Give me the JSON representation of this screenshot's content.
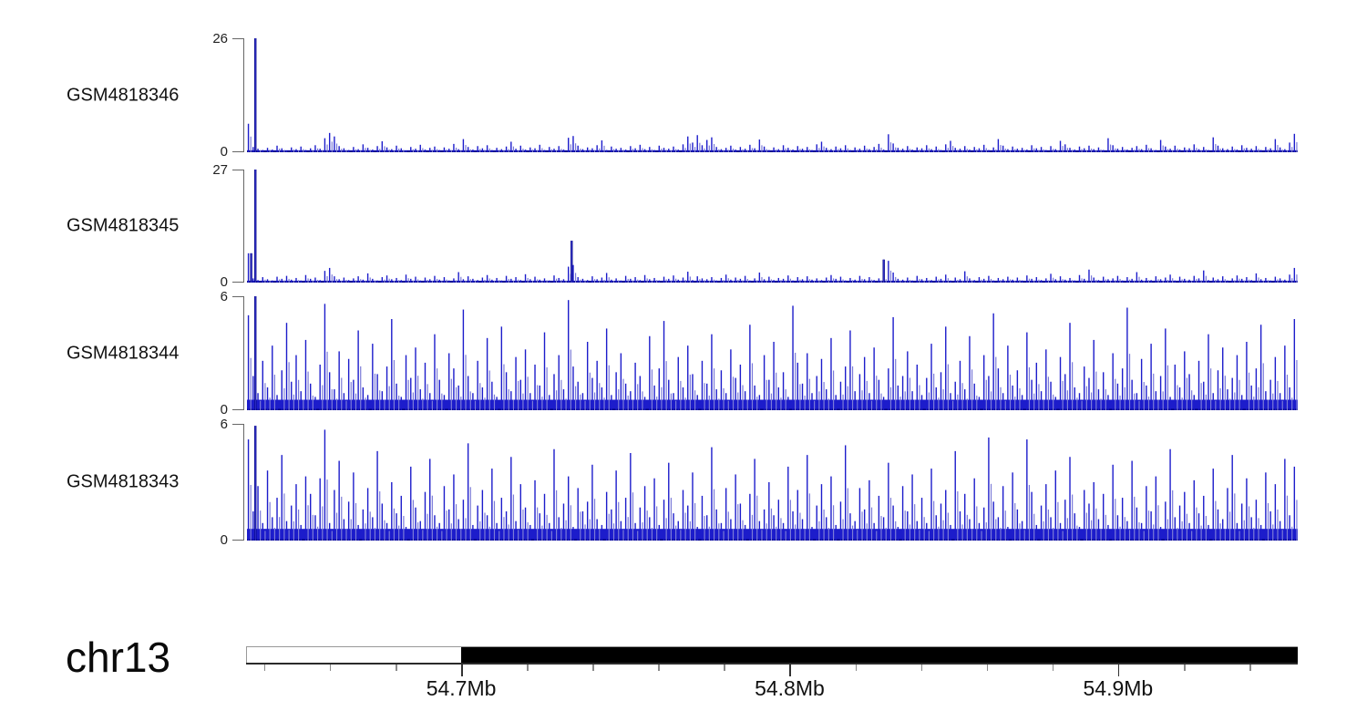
{
  "colors": {
    "signal_main": "#1c1ccb",
    "signal_light": "#7b7bd8",
    "signal_dark": "#000080",
    "spike_core": "#3b3bd6",
    "axis_bracket": "#666666",
    "ruler_line": "#2b2b2b",
    "minor_tick": "#8a8a8a",
    "major_tick": "#333333",
    "ideogram_outline": "#999999",
    "ideogram_filled": "#000000",
    "ideogram_empty": "#ffffff",
    "text": "#111111"
  },
  "chart_data": {
    "type": "area",
    "subtype": "genome-coverage-tracks",
    "chromosome": "chr13",
    "x_unit": "Mb",
    "x_range_mb": [
      54.6345,
      54.9547
    ],
    "grid": false,
    "legend": "none",
    "tracks": [
      {
        "label": "GSM4818346",
        "ymin": 0,
        "ymax": 26,
        "base": 0.45,
        "spikes": [
          {
            "pos": 0.008,
            "value": 26
          }
        ],
        "values": [
          6.5,
          1.2,
          0.8,
          0.5,
          1.0,
          0.6,
          1.5,
          0.9,
          0.4,
          1.1,
          0.7,
          1.3,
          0.5,
          0.9,
          1.6,
          0.8,
          3.2,
          4.4,
          3.6,
          1.4,
          0.9,
          0.5,
          1.2,
          0.7,
          1.8,
          1.0,
          0.6,
          1.4,
          2.5,
          1.1,
          0.7,
          1.5,
          0.9,
          0.4,
          1.2,
          0.8,
          1.7,
          0.6,
          1.0,
          1.3,
          0.5,
          1.1,
          0.8,
          1.9,
          0.7,
          3.0,
          1.2,
          0.6,
          1.4,
          0.9,
          1.6,
          0.5,
          1.0,
          0.7,
          1.3,
          2.4,
          0.8,
          1.5,
          0.6,
          1.1,
          0.9,
          1.7,
          0.5,
          1.2,
          0.8,
          1.4,
          0.6,
          3.3,
          3.7,
          1.5,
          0.7,
          1.1,
          0.9,
          1.6,
          2.7,
          0.5,
          1.3,
          0.8,
          1.0,
          0.6,
          1.4,
          0.9,
          1.7,
          0.7,
          1.2,
          0.5,
          1.5,
          1.0,
          0.8,
          1.3,
          0.6,
          1.8,
          3.6,
          2.2,
          3.9,
          1.6,
          2.8,
          3.4,
          1.2,
          0.7,
          1.0,
          1.5,
          0.6,
          1.2,
          0.8,
          1.7,
          0.9,
          2.9,
          1.3,
          0.5,
          1.1,
          0.7,
          1.6,
          1.0,
          0.6,
          1.4,
          0.8,
          1.2,
          0.5,
          1.8,
          2.4,
          1.0,
          0.7,
          1.3,
          0.9,
          1.6,
          0.5,
          1.1,
          0.8,
          1.5,
          0.7,
          1.2,
          1.9,
          0.6,
          4.1,
          2.0,
          1.0,
          0.8,
          1.4,
          0.6,
          1.1,
          0.9,
          1.6,
          0.7,
          1.3,
          0.5,
          1.8,
          2.6,
          1.0,
          0.8,
          1.4,
          0.6,
          1.2,
          0.9,
          1.7,
          0.5,
          1.1,
          3.0,
          1.5,
          0.7,
          1.3,
          0.8,
          1.0,
          0.6,
          1.6,
          0.9,
          1.2,
          0.5,
          1.4,
          0.7,
          2.6,
          1.8,
          1.0,
          0.6,
          1.3,
          0.9,
          1.5,
          0.7,
          1.1,
          0.5,
          3.2,
          1.6,
          0.8,
          1.2,
          0.6,
          1.0,
          1.4,
          0.7,
          1.7,
          0.9,
          0.5,
          2.8,
          1.3,
          0.8,
          1.5,
          0.6,
          1.1,
          0.9,
          1.8,
          0.7,
          1.2,
          0.5,
          3.4,
          1.5,
          0.9,
          0.7,
          1.3,
          0.6,
          1.6,
          1.0,
          0.8,
          1.4,
          0.5,
          1.2,
          0.9,
          3.0,
          1.1,
          0.7,
          2.2,
          4.2
        ]
      },
      {
        "label": "GSM4818345",
        "ymin": 0,
        "ymax": 27,
        "base": 0.45,
        "spikes": [
          {
            "pos": 0.008,
            "value": 27
          },
          {
            "pos": 0.004,
            "value": 7
          },
          {
            "pos": 0.309,
            "value": 10
          },
          {
            "pos": 0.606,
            "value": 5.5
          }
        ],
        "values": [
          7.0,
          1.0,
          0.6,
          1.3,
          0.8,
          0.5,
          1.4,
          0.9,
          1.6,
          0.7,
          1.1,
          0.5,
          1.8,
          0.9,
          1.2,
          0.6,
          2.8,
          3.5,
          1.5,
          0.8,
          1.2,
          0.6,
          1.0,
          1.5,
          0.7,
          2.2,
          0.9,
          0.5,
          1.3,
          1.7,
          0.8,
          1.1,
          0.6,
          1.9,
          0.9,
          1.4,
          0.5,
          1.2,
          0.8,
          1.6,
          0.7,
          1.3,
          0.5,
          1.0,
          2.5,
          0.8,
          1.5,
          0.9,
          0.6,
          1.2,
          1.8,
          0.7,
          1.1,
          0.5,
          1.6,
          0.9,
          1.3,
          0.6,
          2.0,
          0.8,
          1.4,
          0.7,
          1.0,
          0.5,
          1.7,
          1.1,
          0.8,
          3.8,
          4.2,
          1.3,
          0.9,
          0.6,
          1.5,
          0.8,
          1.2,
          2.3,
          0.7,
          1.0,
          0.5,
          1.6,
          0.9,
          1.3,
          0.6,
          1.8,
          0.8,
          1.1,
          0.5,
          1.4,
          0.9,
          1.7,
          0.7,
          1.2,
          2.6,
          0.6,
          1.5,
          1.0,
          0.8,
          1.3,
          0.5,
          1.1,
          1.9,
          0.7,
          1.2,
          0.9,
          1.6,
          0.5,
          1.0,
          2.4,
          0.8,
          1.4,
          0.6,
          1.1,
          0.9,
          1.7,
          0.5,
          1.3,
          0.8,
          1.5,
          0.7,
          1.0,
          0.6,
          1.2,
          1.8,
          0.9,
          1.4,
          0.5,
          1.1,
          0.7,
          1.6,
          0.8,
          1.3,
          0.6,
          1.0,
          1.5,
          5.2,
          2.4,
          0.9,
          0.7,
          1.2,
          0.5,
          1.6,
          0.8,
          1.1,
          0.6,
          1.4,
          0.9,
          1.9,
          0.5,
          1.2,
          0.8,
          2.7,
          1.0,
          0.6,
          1.3,
          0.9,
          1.6,
          0.5,
          1.1,
          0.8,
          1.4,
          0.7,
          1.2,
          0.5,
          1.7,
          0.9,
          1.3,
          0.6,
          1.0,
          2.1,
          0.8,
          1.5,
          0.7,
          1.1,
          0.5,
          1.8,
          0.9,
          3.1,
          1.2,
          0.6,
          1.4,
          0.8,
          1.0,
          1.6,
          0.5,
          1.3,
          0.9,
          2.5,
          0.7,
          1.1,
          0.6,
          1.5,
          0.8,
          1.2,
          1.9,
          0.5,
          1.4,
          0.9,
          0.7,
          1.6,
          1.0,
          2.9,
          0.6,
          1.2,
          0.8,
          1.5,
          0.5,
          1.0,
          1.7,
          0.9,
          1.3,
          0.6,
          2.2,
          0.8,
          1.1,
          0.5,
          1.4,
          1.0,
          0.7,
          1.9,
          3.5
        ]
      },
      {
        "label": "GSM4818344",
        "ymin": 0,
        "ymax": 6,
        "base": 0.55,
        "spikes": [
          {
            "pos": 0.008,
            "value": 6
          }
        ],
        "values": [
          5.0,
          1.8,
          0.9,
          2.6,
          1.2,
          3.4,
          0.8,
          2.1,
          4.6,
          1.5,
          2.9,
          1.0,
          3.7,
          1.4,
          0.7,
          2.4,
          5.6,
          2.0,
          1.1,
          3.1,
          0.9,
          2.7,
          1.6,
          4.2,
          1.2,
          0.8,
          3.5,
          1.9,
          1.0,
          2.3,
          4.8,
          1.4,
          0.7,
          2.9,
          1.7,
          3.3,
          1.1,
          2.5,
          0.9,
          4.0,
          1.6,
          0.8,
          3.0,
          2.2,
          1.3,
          5.3,
          1.8,
          0.9,
          2.6,
          1.2,
          3.8,
          1.5,
          0.7,
          4.4,
          2.0,
          1.0,
          2.8,
          1.6,
          3.2,
          0.9,
          2.4,
          1.3,
          4.1,
          0.8,
          1.9,
          2.9,
          1.1,
          5.8,
          2.3,
          1.5,
          0.9,
          3.6,
          1.7,
          2.6,
          1.2,
          4.3,
          0.8,
          2.0,
          3.0,
          1.4,
          1.0,
          2.5,
          1.8,
          0.7,
          3.9,
          1.3,
          2.2,
          4.7,
          1.6,
          0.9,
          2.8,
          1.2,
          3.4,
          1.9,
          0.8,
          2.6,
          1.4,
          4.0,
          1.1,
          2.1,
          0.9,
          3.2,
          1.7,
          2.4,
          1.0,
          4.5,
          1.3,
          0.8,
          2.9,
          1.6,
          3.6,
          1.2,
          2.0,
          0.7,
          5.5,
          2.5,
          1.4,
          3.0,
          0.9,
          1.8,
          2.7,
          1.1,
          3.8,
          0.8,
          1.5,
          2.3,
          4.2,
          1.0,
          1.9,
          2.8,
          0.9,
          3.3,
          1.6,
          0.7,
          2.2,
          4.9,
          1.3,
          1.8,
          3.1,
          1.0,
          2.4,
          0.8,
          1.7,
          3.5,
          1.2,
          2.0,
          4.4,
          0.9,
          1.5,
          2.6,
          1.1,
          3.9,
          1.4,
          0.7,
          2.9,
          1.8,
          5.1,
          2.2,
          0.9,
          3.4,
          1.3,
          2.1,
          0.8,
          4.1,
          1.6,
          2.5,
          1.0,
          3.2,
          1.5,
          0.7,
          2.8,
          1.9,
          4.6,
          1.2,
          0.9,
          2.3,
          1.7,
          3.7,
          1.1,
          2.0,
          0.8,
          3.0,
          1.4,
          2.2,
          5.4,
          1.6,
          0.9,
          2.7,
          1.3,
          3.5,
          1.0,
          1.8,
          4.3,
          0.7,
          2.4,
          1.2,
          3.1,
          1.9,
          0.8,
          2.6,
          1.5,
          4.0,
          0.9,
          2.1,
          3.3,
          1.1,
          1.7,
          2.9,
          0.8,
          3.6,
          1.3,
          2.2,
          4.5,
          1.0,
          1.6,
          2.8,
          0.9,
          3.4,
          1.2,
          4.8
        ]
      },
      {
        "label": "GSM4818343",
        "ymin": 0,
        "ymax": 6,
        "base": 0.6,
        "spikes": [
          {
            "pos": 0.008,
            "value": 5.9
          }
        ],
        "values": [
          5.2,
          1.5,
          2.8,
          0.9,
          3.6,
          1.2,
          2.2,
          4.4,
          1.0,
          1.8,
          2.9,
          0.8,
          3.3,
          2.4,
          1.3,
          3.2,
          5.7,
          0.9,
          2.6,
          4.1,
          1.1,
          2.0,
          3.5,
          0.8,
          1.6,
          2.7,
          1.2,
          4.6,
          1.9,
          0.9,
          3.0,
          1.4,
          2.3,
          0.7,
          3.8,
          1.7,
          1.0,
          2.5,
          4.2,
          1.3,
          0.9,
          2.8,
          1.6,
          3.4,
          1.1,
          2.1,
          5.0,
          0.8,
          1.8,
          2.6,
          1.3,
          3.7,
          0.9,
          2.2,
          1.5,
          4.3,
          1.0,
          2.9,
          1.7,
          0.8,
          3.1,
          1.4,
          2.4,
          0.9,
          4.7,
          1.2,
          1.9,
          3.3,
          0.7,
          2.7,
          1.5,
          2.0,
          3.9,
          1.1,
          0.8,
          2.5,
          1.6,
          3.6,
          1.0,
          2.2,
          4.5,
          0.9,
          1.7,
          2.8,
          1.2,
          3.2,
          0.8,
          2.1,
          4.0,
          1.4,
          1.0,
          2.6,
          1.8,
          3.5,
          0.7,
          2.3,
          1.3,
          4.8,
          1.6,
          0.9,
          2.7,
          1.1,
          3.4,
          1.9,
          0.8,
          2.4,
          4.2,
          1.0,
          1.6,
          3.0,
          1.3,
          2.1,
          0.9,
          3.8,
          1.5,
          2.6,
          1.1,
          4.4,
          0.7,
          1.8,
          2.9,
          1.2,
          3.3,
          0.8,
          2.0,
          4.9,
          1.4,
          1.0,
          2.7,
          1.6,
          3.1,
          0.9,
          2.3,
          1.2,
          4.0,
          1.8,
          0.7,
          2.8,
          1.5,
          3.4,
          1.0,
          2.2,
          0.9,
          3.7,
          1.3,
          1.9,
          2.6,
          0.8,
          4.6,
          1.5,
          2.4,
          1.1,
          3.2,
          0.9,
          1.7,
          5.3,
          2.0,
          1.2,
          2.8,
          0.7,
          3.5,
          1.6,
          1.0,
          5.2,
          2.5,
          0.8,
          1.8,
          2.9,
          1.2,
          3.6,
          0.9,
          2.1,
          4.3,
          1.4,
          0.7,
          2.6,
          1.9,
          3.0,
          1.1,
          2.4,
          0.8,
          3.9,
          1.3,
          2.2,
          1.0,
          4.1,
          1.7,
          0.9,
          2.8,
          1.5,
          3.3,
          0.7,
          2.0,
          4.7,
          1.2,
          1.8,
          2.5,
          0.9,
          3.1,
          1.4,
          2.3,
          0.8,
          3.7,
          1.6,
          1.1,
          2.7,
          4.4,
          0.9,
          1.9,
          3.2,
          1.2,
          2.1,
          0.8,
          3.5,
          1.5,
          2.9,
          1.0,
          4.2,
          1.3,
          3.8
        ]
      }
    ],
    "ruler": {
      "chromosome_label": "chr13",
      "major_ticks": [
        {
          "mb": 54.7,
          "label": "54.7Mb"
        },
        {
          "mb": 54.8,
          "label": "54.8Mb"
        },
        {
          "mb": 54.9,
          "label": "54.9Mb"
        }
      ],
      "minor_ticks_mb": [
        54.64,
        54.66,
        54.68,
        54.7,
        54.72,
        54.74,
        54.76,
        54.78,
        54.8,
        54.82,
        54.84,
        54.86,
        54.88,
        54.9,
        54.92,
        54.94
      ],
      "ideogram_segments": [
        {
          "start_mb": 54.6345,
          "end_mb": 54.7,
          "fill": "white"
        },
        {
          "start_mb": 54.7,
          "end_mb": 54.9547,
          "fill": "black"
        }
      ]
    }
  }
}
